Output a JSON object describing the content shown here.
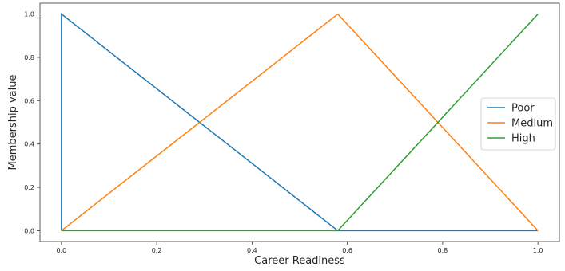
{
  "chart_data": {
    "type": "line",
    "title": "",
    "xlabel": "Career Readiness",
    "ylabel": "Membership value",
    "xlim": [
      -0.045,
      1.045
    ],
    "ylim": [
      -0.05,
      1.05
    ],
    "xticks": [
      0.0,
      0.2,
      0.4,
      0.6,
      0.8,
      1.0
    ],
    "yticks": [
      0.0,
      0.2,
      0.4,
      0.6,
      0.8,
      1.0
    ],
    "xtick_labels": [
      "0.0",
      "0.2",
      "0.4",
      "0.6",
      "0.8",
      "1.0"
    ],
    "ytick_labels": [
      "0.0",
      "0.2",
      "0.4",
      "0.6",
      "0.8",
      "1.0"
    ],
    "grid": false,
    "legend_position": "right",
    "series": [
      {
        "name": "Poor",
        "color": "#1f77b4",
        "x": [
          0.0,
          0.0,
          0.58,
          1.0
        ],
        "y": [
          0.0,
          1.0,
          0.0,
          0.0
        ]
      },
      {
        "name": "Medium",
        "color": "#ff7f0e",
        "x": [
          0.0,
          0.58,
          1.0
        ],
        "y": [
          0.0,
          1.0,
          0.0
        ]
      },
      {
        "name": "High",
        "color": "#2ca02c",
        "x": [
          0.0,
          0.58,
          1.0
        ],
        "y": [
          0.0,
          0.0,
          1.0
        ]
      }
    ]
  }
}
